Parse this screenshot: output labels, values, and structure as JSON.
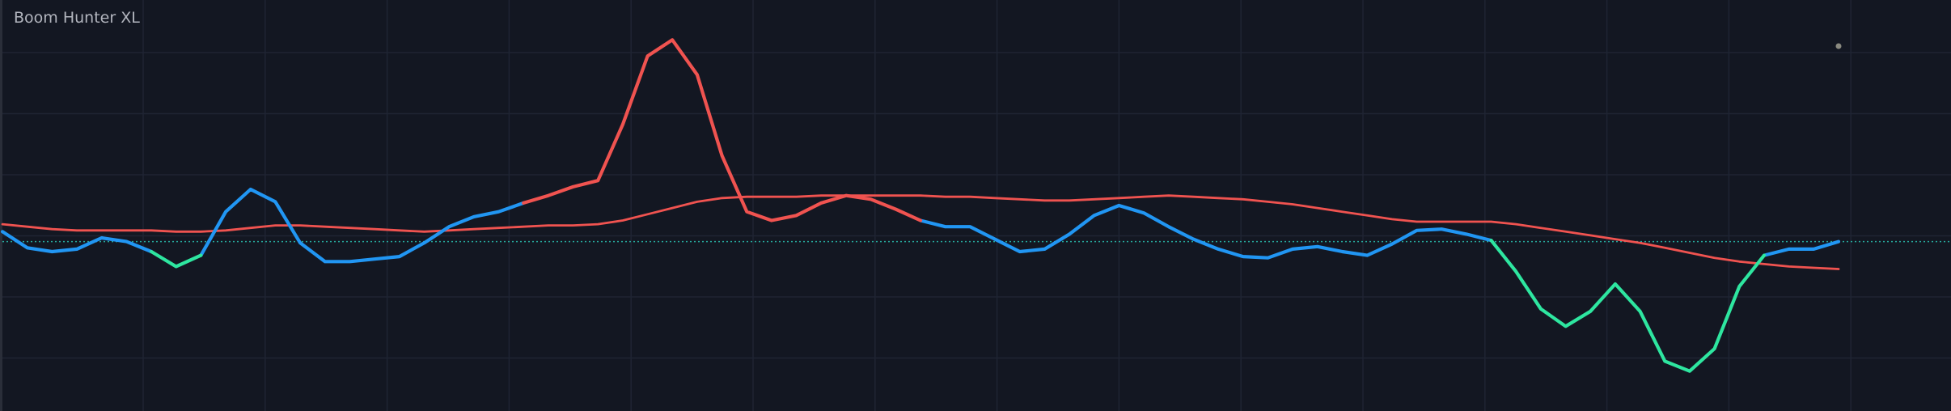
{
  "chart_data": {
    "type": "line",
    "title": "Boom Hunter XL",
    "x": [
      0,
      20,
      40,
      60,
      80,
      100,
      120,
      140,
      160,
      180,
      200,
      220,
      240,
      260,
      280,
      300,
      320,
      340,
      360,
      380,
      400,
      420,
      440,
      460,
      480,
      500,
      520,
      540,
      560,
      580,
      600,
      620,
      640,
      660,
      680,
      700,
      720,
      740,
      760,
      780,
      800,
      820,
      840,
      860,
      880,
      900,
      920,
      940,
      960,
      980,
      1000,
      1020,
      1040,
      1060,
      1080,
      1100,
      1120,
      1140,
      1160,
      1180,
      1200,
      1220,
      1240,
      1260,
      1280,
      1300,
      1320,
      1340,
      1360,
      1380,
      1400,
      1420,
      1440,
      1460,
      1480
    ],
    "xlim": [
      0,
      1480
    ],
    "ylim": [
      -136,
      194
    ],
    "baseline": 0,
    "baseline_color": "#26a69a",
    "series": [
      {
        "color": "#2196f3",
        "values": [
          8,
          -5,
          -8,
          -6,
          3,
          0,
          -8,
          null,
          -11,
          24,
          42,
          32,
          -1,
          -16,
          -16,
          -14,
          -12,
          -1,
          12,
          20,
          24,
          31,
          null,
          null,
          null,
          null,
          null,
          null,
          null,
          null,
          null,
          null,
          null,
          null,
          null,
          null,
          null,
          17,
          12,
          12,
          2,
          -8,
          -6,
          6,
          21,
          29,
          23,
          12,
          2,
          -6,
          -12,
          -13,
          -6,
          -4,
          -8,
          -11,
          -2,
          9,
          10,
          6,
          1,
          null,
          null,
          null,
          null,
          null,
          null,
          null,
          null,
          null,
          null,
          -11,
          -6,
          -6,
          0
        ]
      },
      {
        "color": "#2ee6a0",
        "values": [
          null,
          null,
          null,
          null,
          null,
          null,
          -8,
          -20,
          -11,
          null,
          null,
          null,
          null,
          null,
          null,
          null,
          null,
          null,
          null,
          null,
          null,
          null,
          null,
          null,
          null,
          null,
          null,
          null,
          null,
          null,
          null,
          null,
          null,
          null,
          null,
          null,
          null,
          null,
          null,
          null,
          null,
          null,
          null,
          null,
          null,
          null,
          null,
          null,
          null,
          null,
          null,
          null,
          null,
          null,
          null,
          null,
          null,
          null,
          null,
          null,
          1,
          -24,
          -54,
          -68,
          -56,
          -34,
          -56,
          -96,
          -104,
          -86,
          -36,
          -11,
          null,
          null,
          null
        ]
      },
      {
        "color": "#f05350",
        "values": [
          null,
          null,
          null,
          null,
          null,
          null,
          null,
          null,
          null,
          null,
          null,
          null,
          null,
          null,
          null,
          null,
          null,
          null,
          null,
          null,
          null,
          31,
          37,
          44,
          49,
          94,
          149,
          162,
          134,
          69,
          24,
          17,
          21,
          31,
          37,
          34,
          26,
          17,
          null,
          null,
          null,
          null,
          null,
          null,
          null,
          null,
          null,
          null,
          null,
          null,
          null,
          null,
          null,
          null,
          null,
          null,
          null,
          null,
          null,
          null,
          null,
          null,
          null,
          null,
          null,
          null,
          null,
          null,
          null,
          null,
          null,
          null,
          null,
          null,
          null
        ]
      },
      {
        "color": "#f05350",
        "values": [
          14,
          12,
          10,
          9,
          9,
          9,
          9,
          8,
          8,
          9,
          11,
          13,
          13,
          12,
          11,
          10,
          9,
          8,
          9,
          10,
          11,
          12,
          13,
          13,
          14,
          17,
          22,
          27,
          32,
          35,
          36,
          36,
          36,
          37,
          37,
          37,
          37,
          37,
          36,
          36,
          35,
          34,
          33,
          33,
          34,
          35,
          36,
          37,
          36,
          35,
          34,
          32,
          30,
          27,
          24,
          21,
          18,
          16,
          16,
          16,
          16,
          14,
          11,
          8,
          5,
          2,
          -1,
          -5,
          -9,
          -13,
          -16,
          -18,
          -20,
          -21,
          -22
        ]
      }
    ]
  }
}
